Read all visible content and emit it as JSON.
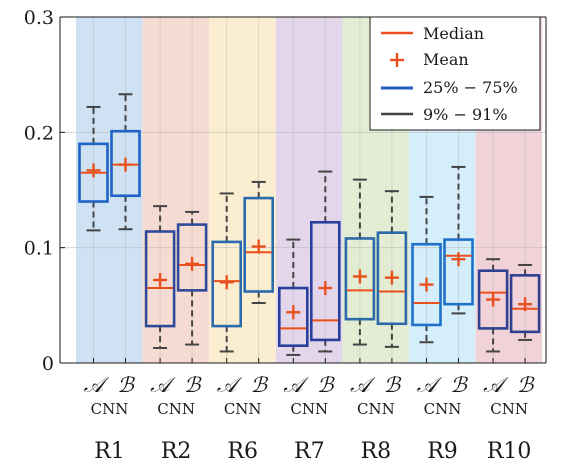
{
  "chart_data": {
    "type": "box",
    "ylim": [
      0,
      0.3
    ],
    "yticks": [
      "0",
      "0.1",
      "0.2",
      "0.3"
    ],
    "yticks_values": [
      0,
      0.1,
      0.2,
      0.3
    ],
    "grid": true,
    "legend": {
      "placement": "top-right",
      "entries": [
        {
          "key": "median",
          "label": "Median",
          "color": "#e8501e"
        },
        {
          "key": "mean",
          "label": "Mean",
          "color": "#e8501e"
        },
        {
          "key": "iqr",
          "label": "25% − 75%",
          "color": "#1f5fbf"
        },
        {
          "key": "whisker",
          "label": "9% − 91%",
          "color": "#444444"
        }
      ]
    },
    "method_labels": {
      "A": "𝒜",
      "B": "ℬ"
    },
    "sublabel": "CNN",
    "colors": {
      "median": "#e8501e",
      "mean": "#e8501e",
      "whisker": "#444444"
    },
    "groups": [
      {
        "name": "R1",
        "bg": "#cfe2f3",
        "box_color": "#1f63c6",
        "boxes": [
          {
            "method": "A",
            "p9": 0.115,
            "q1": 0.14,
            "median": 0.165,
            "q3": 0.19,
            "p91": 0.222,
            "mean": 0.167
          },
          {
            "method": "B",
            "p9": 0.116,
            "q1": 0.145,
            "median": 0.172,
            "q3": 0.201,
            "p91": 0.233,
            "mean": 0.172
          }
        ]
      },
      {
        "name": "R2",
        "bg": "#f6dbd3",
        "box_color": "#304a9a",
        "boxes": [
          {
            "method": "A",
            "p9": 0.013,
            "q1": 0.032,
            "median": 0.065,
            "q3": 0.114,
            "p91": 0.136,
            "mean": 0.072
          },
          {
            "method": "B",
            "p9": 0.016,
            "q1": 0.063,
            "median": 0.085,
            "q3": 0.12,
            "p91": 0.131,
            "mean": 0.086
          }
        ]
      },
      {
        "name": "R6",
        "bg": "#fbeed0",
        "box_color": "#2a6bb0",
        "boxes": [
          {
            "method": "A",
            "p9": 0.01,
            "q1": 0.032,
            "median": 0.071,
            "q3": 0.105,
            "p91": 0.147,
            "mean": 0.07
          },
          {
            "method": "B",
            "p9": 0.052,
            "q1": 0.062,
            "median": 0.096,
            "q3": 0.143,
            "p91": 0.157,
            "mean": 0.101
          }
        ]
      },
      {
        "name": "R7",
        "bg": "#e3d6ea",
        "box_color": "#283f9e",
        "boxes": [
          {
            "method": "A",
            "p9": 0.007,
            "q1": 0.015,
            "median": 0.03,
            "q3": 0.065,
            "p91": 0.107,
            "mean": 0.044
          },
          {
            "method": "B",
            "p9": 0.01,
            "q1": 0.02,
            "median": 0.037,
            "q3": 0.122,
            "p91": 0.166,
            "mean": 0.065
          }
        ]
      },
      {
        "name": "R8",
        "bg": "#e2edd3",
        "box_color": "#2a6aa8",
        "boxes": [
          {
            "method": "A",
            "p9": 0.016,
            "q1": 0.038,
            "median": 0.063,
            "q3": 0.108,
            "p91": 0.159,
            "mean": 0.075
          },
          {
            "method": "B",
            "p9": 0.014,
            "q1": 0.034,
            "median": 0.062,
            "q3": 0.113,
            "p91": 0.149,
            "mean": 0.074
          }
        ]
      },
      {
        "name": "R9",
        "bg": "#d5eefb",
        "box_color": "#1f72c8",
        "boxes": [
          {
            "method": "A",
            "p9": 0.018,
            "q1": 0.033,
            "median": 0.052,
            "q3": 0.103,
            "p91": 0.144,
            "mean": 0.068
          },
          {
            "method": "B",
            "p9": 0.043,
            "q1": 0.051,
            "median": 0.093,
            "q3": 0.107,
            "p91": 0.17,
            "mean": 0.09
          }
        ]
      },
      {
        "name": "R10",
        "bg": "#f0d2d8",
        "box_color": "#2f4190",
        "boxes": [
          {
            "method": "A",
            "p9": 0.01,
            "q1": 0.03,
            "median": 0.061,
            "q3": 0.08,
            "p91": 0.09,
            "mean": 0.055
          },
          {
            "method": "B",
            "p9": 0.02,
            "q1": 0.027,
            "median": 0.047,
            "q3": 0.076,
            "p91": 0.085,
            "mean": 0.051
          }
        ]
      }
    ]
  }
}
